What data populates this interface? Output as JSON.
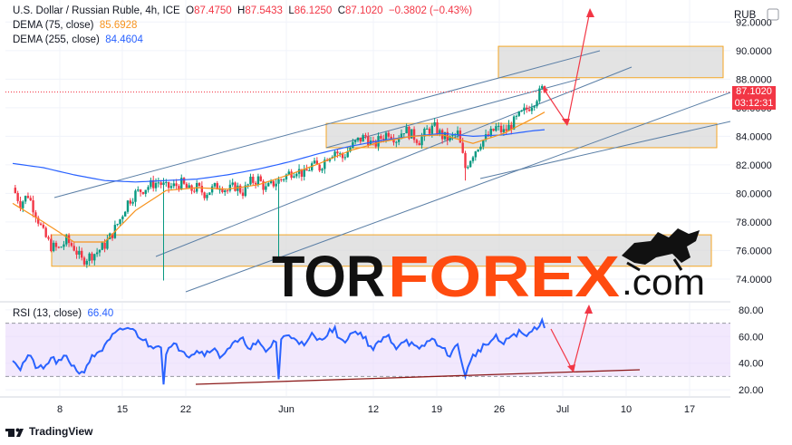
{
  "header": {
    "symbol": "U.S. Dollar / Russian Ruble, 4h, ICE",
    "o_label": "O",
    "o_value": "87.4750",
    "h_label": "H",
    "h_value": "87.5433",
    "l_label": "L",
    "l_value": "86.1250",
    "c_label": "C",
    "c_value": "87.1020",
    "change": "−0.3802 (−0.43%)",
    "dema75_label": "DEMA (75, close)",
    "dema75_value": "85.6928",
    "dema255_label": "DEMA (255, close)",
    "dema255_value": "84.4604"
  },
  "currency": "RUB",
  "price_tag": {
    "price": "87.1020",
    "countdown": "03:12:31"
  },
  "rsi_header": {
    "label": "RSI (13, close)",
    "value": "66.40"
  },
  "watermark": {
    "part1": "TOR",
    "part2": "FOREX",
    "part3": ".com"
  },
  "footer": {
    "brand": "TradingView"
  },
  "colors": {
    "up": "#089981",
    "down": "#f23645",
    "dema75": "#f7931e",
    "dema255": "#2962ff",
    "rsi": "#2962ff",
    "zone_fill": "#d9d9d9",
    "zone_border": "#f5a623",
    "arrow": "#f23645",
    "trend": "#5b7fa6",
    "rsi_band": "#ead9fb",
    "wm_black": "#111111",
    "wm_orange": "#ff4b0f"
  },
  "chart_data": [
    {
      "type": "candlestick",
      "title": "U.S. Dollar / Russian Ruble, 4h, ICE",
      "x_ticks": [
        "8",
        "15",
        "22",
        "Jun",
        "12",
        "19",
        "26",
        "Jul",
        "10",
        "17"
      ],
      "y_ticks": [
        "92.0000",
        "90.0000",
        "88.0000",
        "86.0000",
        "84.0000",
        "82.0000",
        "80.0000",
        "78.0000",
        "76.0000",
        "74.0000"
      ],
      "ylim": [
        72.6,
        92.4
      ],
      "scale_unit": "RUB",
      "last_close": 87.102,
      "close_path": [
        [
          0,
          80.4
        ],
        [
          3,
          79.3
        ],
        [
          6,
          79.9
        ],
        [
          9,
          78.6
        ],
        [
          12,
          77.2
        ],
        [
          15,
          76.3
        ],
        [
          18,
          76.1
        ],
        [
          21,
          76.7
        ],
        [
          24,
          76.2
        ],
        [
          27,
          75.3
        ],
        [
          30,
          75.6
        ],
        [
          33,
          75.9
        ],
        [
          36,
          76.4
        ],
        [
          39,
          77.2
        ],
        [
          42,
          78.2
        ],
        [
          45,
          79.4
        ],
        [
          48,
          80.0
        ],
        [
          51,
          80.3
        ],
        [
          54,
          80.6
        ],
        [
          57,
          80.8
        ],
        [
          60,
          80.4
        ],
        [
          63,
          80.5
        ],
        [
          66,
          80.7
        ],
        [
          69,
          80.2
        ],
        [
          72,
          80.4
        ],
        [
          75,
          80.0
        ],
        [
          78,
          80.3
        ],
        [
          81,
          80.6
        ],
        [
          84,
          80.2
        ],
        [
          87,
          80.5
        ],
        [
          90,
          80.1
        ],
        [
          93,
          80.8
        ],
        [
          96,
          81.0
        ],
        [
          99,
          80.3
        ],
        [
          102,
          80.7
        ],
        [
          105,
          81.0
        ],
        [
          108,
          81.4
        ],
        [
          111,
          81.7
        ],
        [
          114,
          81.3
        ],
        [
          117,
          82.0
        ],
        [
          120,
          81.8
        ],
        [
          123,
          82.6
        ],
        [
          126,
          83.0
        ],
        [
          129,
          82.5
        ],
        [
          132,
          83.2
        ],
        [
          135,
          83.7
        ],
        [
          138,
          84.0
        ],
        [
          141,
          83.3
        ],
        [
          144,
          83.9
        ],
        [
          147,
          84.3
        ],
        [
          150,
          83.8
        ],
        [
          153,
          84.5
        ],
        [
          156,
          84.1
        ],
        [
          159,
          83.7
        ],
        [
          162,
          84.4
        ],
        [
          165,
          84.6
        ],
        [
          168,
          84.0
        ],
        [
          171,
          83.8
        ],
        [
          174,
          84.2
        ],
        [
          177,
          81.8
        ],
        [
          180,
          82.8
        ],
        [
          183,
          83.6
        ],
        [
          186,
          84.0
        ],
        [
          189,
          84.6
        ],
        [
          192,
          84.3
        ],
        [
          195,
          84.8
        ],
        [
          198,
          85.4
        ],
        [
          201,
          85.9
        ],
        [
          204,
          86.5
        ],
        [
          207,
          87.3
        ],
        [
          208,
          87.102
        ]
      ],
      "dema75_path": [
        [
          0,
          79.3
        ],
        [
          12,
          78.0
        ],
        [
          24,
          76.6
        ],
        [
          36,
          76.6
        ],
        [
          48,
          78.8
        ],
        [
          60,
          80.2
        ],
        [
          72,
          80.4
        ],
        [
          84,
          80.3
        ],
        [
          96,
          80.6
        ],
        [
          108,
          81.3
        ],
        [
          120,
          82.1
        ],
        [
          132,
          83.0
        ],
        [
          144,
          83.6
        ],
        [
          156,
          84.0
        ],
        [
          168,
          84.1
        ],
        [
          180,
          83.5
        ],
        [
          192,
          84.2
        ],
        [
          204,
          85.3
        ],
        [
          208,
          85.6928
        ]
      ],
      "dema255_path": [
        [
          0,
          82.1
        ],
        [
          12,
          81.8
        ],
        [
          24,
          81.3
        ],
        [
          36,
          80.9
        ],
        [
          48,
          80.8
        ],
        [
          60,
          80.9
        ],
        [
          72,
          81.0
        ],
        [
          84,
          81.3
        ],
        [
          96,
          81.7
        ],
        [
          108,
          82.2
        ],
        [
          120,
          82.8
        ],
        [
          132,
          83.3
        ],
        [
          144,
          83.7
        ],
        [
          156,
          84.0
        ],
        [
          168,
          84.2
        ],
        [
          180,
          84.0
        ],
        [
          192,
          84.1
        ],
        [
          204,
          84.4
        ],
        [
          208,
          84.4604
        ]
      ],
      "zones": [
        {
          "from": 88.1,
          "to": 90.3
        },
        {
          "from": 83.2,
          "to": 84.9
        },
        {
          "from": 74.9,
          "to": 77.1
        }
      ]
    },
    {
      "type": "line",
      "title": "RSI (13, close)",
      "x_ticks": [
        "8",
        "15",
        "22",
        "Jun",
        "12",
        "19",
        "26",
        "Jul",
        "10",
        "17"
      ],
      "y_ticks": [
        "80.00",
        "60.00",
        "40.00",
        "20.00"
      ],
      "ylim": [
        16,
        84
      ],
      "bands": [
        30,
        70
      ],
      "series": [
        {
          "name": "RSI (13, close)",
          "values_path": [
            [
              0,
              44
            ],
            [
              3,
              36
            ],
            [
              6,
              46
            ],
            [
              9,
              38
            ],
            [
              12,
              35
            ],
            [
              15,
              44
            ],
            [
              18,
              40
            ],
            [
              21,
              45
            ],
            [
              24,
              37
            ],
            [
              27,
              32
            ],
            [
              30,
              42
            ],
            [
              33,
              48
            ],
            [
              36,
              52
            ],
            [
              39,
              60
            ],
            [
              42,
              64
            ],
            [
              45,
              67
            ],
            [
              48,
              63
            ],
            [
              51,
              58
            ],
            [
              54,
              52
            ],
            [
              57,
              55
            ],
            [
              60,
              49
            ],
            [
              63,
              53
            ],
            [
              66,
              51
            ],
            [
              69,
              46
            ],
            [
              72,
              50
            ],
            [
              75,
              47
            ],
            [
              78,
              52
            ],
            [
              81,
              45
            ],
            [
              84,
              51
            ],
            [
              87,
              55
            ],
            [
              90,
              57
            ],
            [
              93,
              52
            ],
            [
              96,
              55
            ],
            [
              99,
              48
            ],
            [
              102,
              56
            ],
            [
              105,
              58
            ],
            [
              108,
              61
            ],
            [
              111,
              59
            ],
            [
              114,
              52
            ],
            [
              117,
              61
            ],
            [
              120,
              57
            ],
            [
              123,
              63
            ],
            [
              126,
              65
            ],
            [
              129,
              55
            ],
            [
              132,
              62
            ],
            [
              135,
              64
            ],
            [
              138,
              58
            ],
            [
              141,
              50
            ],
            [
              144,
              57
            ],
            [
              147,
              60
            ],
            [
              150,
              52
            ],
            [
              153,
              58
            ],
            [
              156,
              54
            ],
            [
              159,
              49
            ],
            [
              162,
              56
            ],
            [
              165,
              58
            ],
            [
              168,
              50
            ],
            [
              171,
              47
            ],
            [
              174,
              53
            ],
            [
              177,
              31
            ],
            [
              180,
              45
            ],
            [
              183,
              51
            ],
            [
              186,
              55
            ],
            [
              189,
              59
            ],
            [
              192,
              54
            ],
            [
              195,
              61
            ],
            [
              198,
              63
            ],
            [
              201,
              60
            ],
            [
              204,
              66
            ],
            [
              207,
              71
            ],
            [
              208,
              66.4
            ]
          ]
        }
      ]
    }
  ]
}
